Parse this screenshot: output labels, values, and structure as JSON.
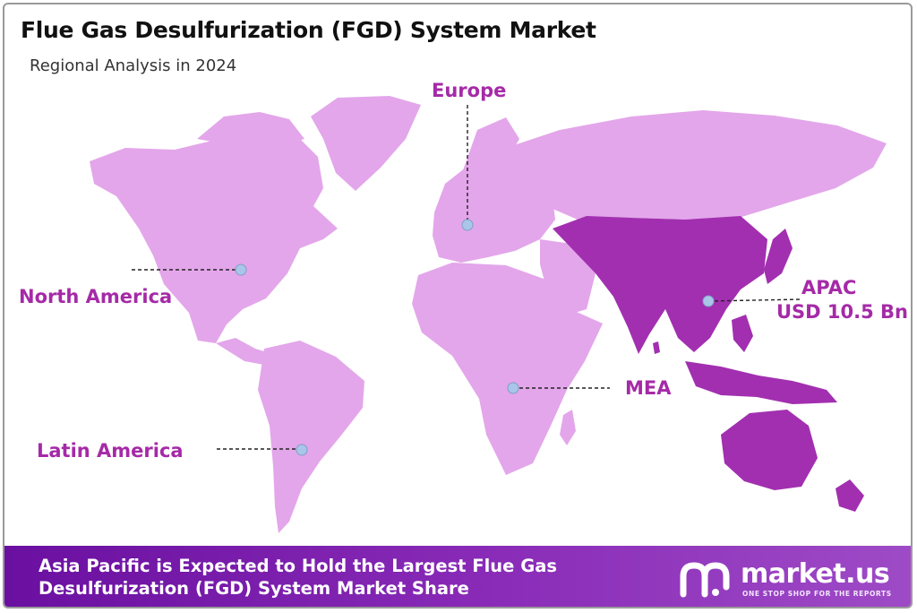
{
  "header": {
    "title": "Flue Gas Desulfurization (FGD) System Market",
    "subtitle": "Regional Analysis in 2024"
  },
  "map": {
    "colors": {
      "land": "#e3a6ea",
      "highlight": "#a22fb0",
      "accent_text": "#a52aa7",
      "marker": "#a9c6e8",
      "leader_line": "#222222"
    },
    "highlighted_region": "APAC",
    "regions": {
      "europe": {
        "label": "Europe"
      },
      "north_america": {
        "label": "North America"
      },
      "apac": {
        "label": "APAC",
        "value": "USD 10.5 Bn"
      },
      "mea": {
        "label": "MEA"
      },
      "latin_america": {
        "label": "Latin America"
      }
    }
  },
  "footer": {
    "line1": "Asia Pacific is Expected to Hold the Largest Flue Gas",
    "line2": "Desulfurization (FGD) System Market Share",
    "brand_name": "market.us",
    "brand_tagline": "ONE STOP SHOP FOR THE REPORTS",
    "brand_logo_icon": "market-us-logo-icon"
  }
}
